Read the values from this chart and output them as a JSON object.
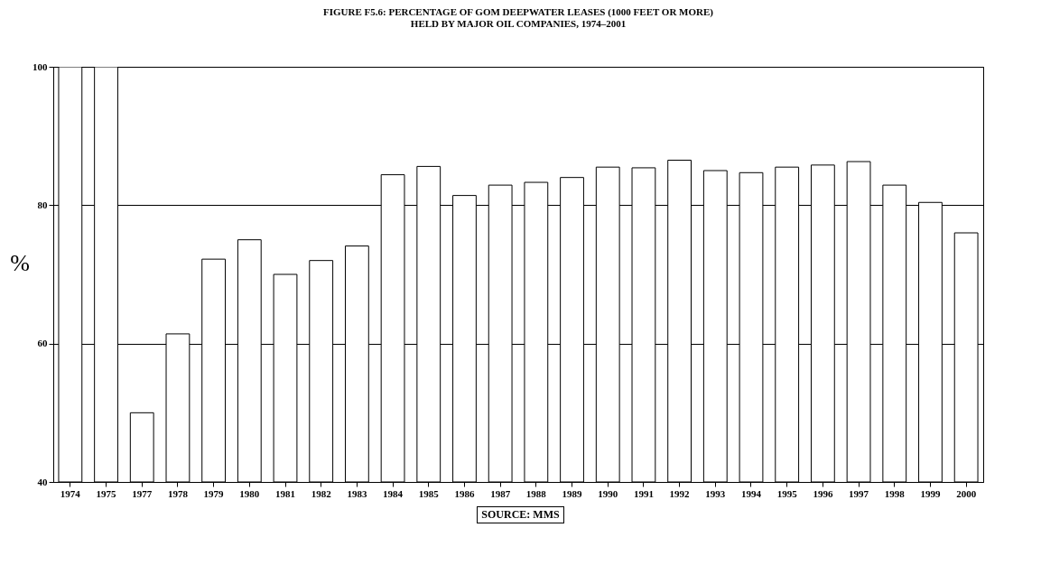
{
  "chart_data": {
    "type": "bar",
    "title": "FIGURE F5.6: PERCENTAGE OF GOM DEEPWATER LEASES (1000 FEET OR MORE)\nHELD BY MAJOR OIL COMPANIES, 1974–2001",
    "ylabel": "%",
    "categories": [
      "1974",
      "1975",
      "1977",
      "1978",
      "1979",
      "1980",
      "1981",
      "1982",
      "1983",
      "1984",
      "1985",
      "1986",
      "1987",
      "1988",
      "1989",
      "1990",
      "1991",
      "1992",
      "1993",
      "1994",
      "1995",
      "1996",
      "1997",
      "1998",
      "1999",
      "2000"
    ],
    "values": [
      100,
      100,
      50,
      61.4,
      72.2,
      75,
      70,
      72,
      74.1,
      84.4,
      85.6,
      81.4,
      82.9,
      83.3,
      84,
      85.5,
      85.4,
      86.5,
      85,
      84.7,
      85.5,
      85.8,
      86.3,
      82.9,
      80.4,
      76
    ],
    "color": "#ffffff",
    "ylim": [
      40,
      100
    ],
    "yticks": [
      40,
      60,
      80,
      100
    ],
    "grid": "y",
    "annotations": [
      "SOURCE: MMS"
    ]
  }
}
